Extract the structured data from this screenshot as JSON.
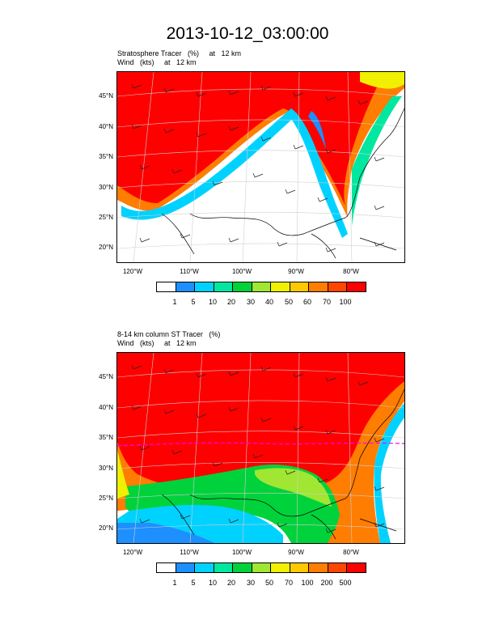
{
  "title": "2013-10-12_03:00:00",
  "panels": [
    {
      "subtitle1": "Stratosphere Tracer   (%)     at   12 km",
      "subtitle2": "Wind   (kts)     at   12 km",
      "legend_labels": [
        "1",
        "5",
        "10",
        "20",
        "30",
        "40",
        "50",
        "60",
        "70",
        "100"
      ]
    },
    {
      "subtitle1": "8-14 km column ST Tracer   (%)",
      "subtitle2": "Wind   (kts)     at   12 km",
      "legend_labels": [
        "1",
        "5",
        "10",
        "20",
        "30",
        "50",
        "70",
        "100",
        "200",
        "500"
      ]
    }
  ],
  "lat_labels": [
    "45°N",
    "40°N",
    "35°N",
    "30°N",
    "25°N",
    "20°N"
  ],
  "lon_labels": [
    "120°W",
    "110°W",
    "100°W",
    "90°W",
    "80°W"
  ],
  "legend_colors": [
    "#ffffff",
    "#1e8fff",
    "#00d2ff",
    "#00e8a0",
    "#00d23c",
    "#a0e632",
    "#f0f000",
    "#ffc800",
    "#ff7d00",
    "#ff4600",
    "#ff0000"
  ]
}
